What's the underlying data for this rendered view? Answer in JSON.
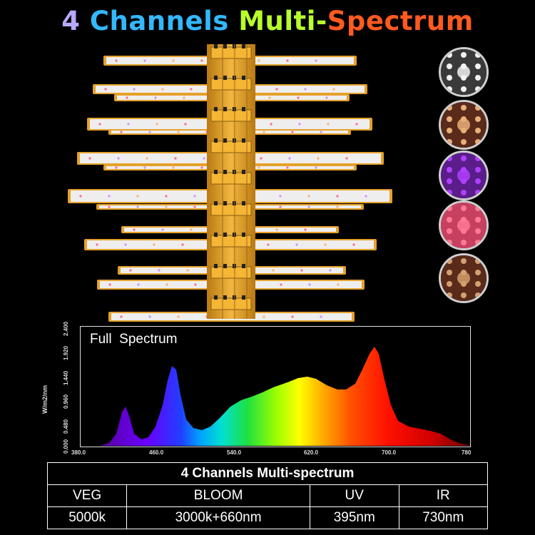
{
  "title": {
    "parts": [
      {
        "text": "4 ",
        "color": "#b9a9ff"
      },
      {
        "text": "Channels ",
        "color": "#33b8ff"
      },
      {
        "text": "Multi-",
        "color": "#b8ff2a"
      },
      {
        "text": "Spectrum",
        "color": "#ff5a1f"
      }
    ]
  },
  "colors": {
    "frame": "#e5a12b",
    "lightbar": "#eeeeee",
    "background": "#000000"
  },
  "chips": [
    {
      "name": "white-led-chip",
      "color": "#f2f2f2"
    },
    {
      "name": "warm-red-led-chip",
      "color": "#e8b07a"
    },
    {
      "name": "uv-led-chip",
      "color": "#b040ff"
    },
    {
      "name": "red-led-chip",
      "color": "#ff7a95"
    },
    {
      "name": "ir-led-chip",
      "color": "#d4a070"
    }
  ],
  "spectrum": {
    "label": "Full  Spectrum",
    "ylabel": "W/m2/nm",
    "yticks": [
      "0.000",
      "0.480",
      "0.960",
      "1.440",
      "1.920",
      "2.400"
    ],
    "xticks": [
      "380.0",
      "460.0",
      "540.0",
      "620.0",
      "700.0",
      "780"
    ]
  },
  "table": {
    "header": "4 Channels Multi-spectrum",
    "columns": [
      "VEG",
      "BLOOM",
      "UV",
      "IR"
    ],
    "values": [
      "5000k",
      "3000k+660nm",
      "395nm",
      "730nm"
    ]
  }
}
